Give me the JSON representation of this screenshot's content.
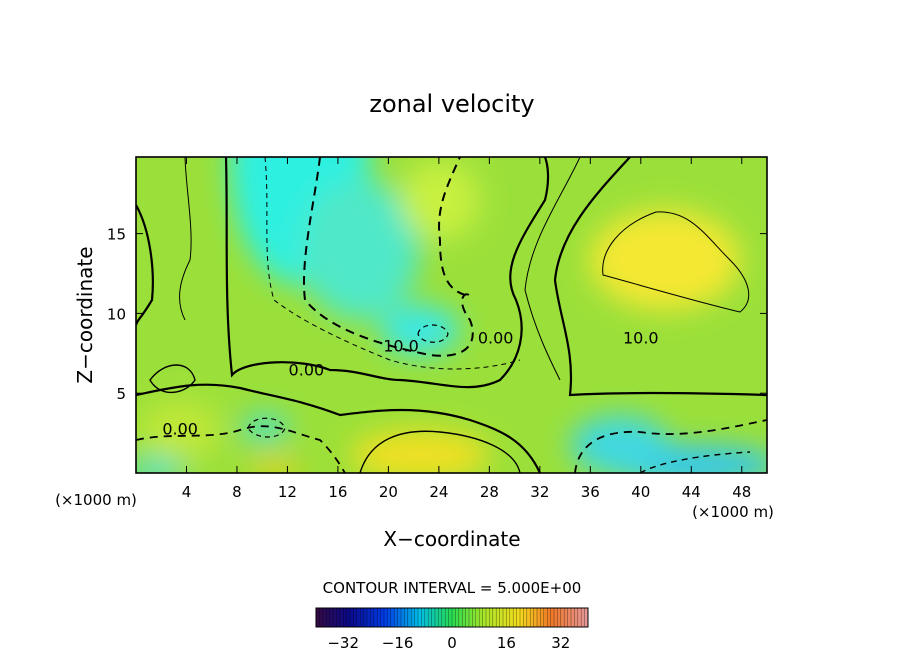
{
  "chart_data": {
    "type": "heatmap",
    "title": "zonal velocity",
    "xlabel": "X−coordinate",
    "ylabel": "Z−coordinate",
    "x_unit_left": "(×1000 m)",
    "x_unit_right": "(×1000 m)",
    "xlim": [
      0,
      50
    ],
    "ylim": [
      0,
      19.8
    ],
    "x_ticks": [
      4,
      8,
      12,
      16,
      20,
      24,
      28,
      32,
      36,
      40,
      44,
      48
    ],
    "y_ticks": [
      5,
      10,
      15
    ],
    "contour_interval_text": "CONTOUR INTERVAL = 5.000E+00",
    "contour_interval": 5.0,
    "contour_labels": [
      {
        "text": "10.0",
        "x": 21,
        "y": 8.0
      },
      {
        "text": "0.00",
        "x": 28.5,
        "y": 8.5
      },
      {
        "text": "10.0",
        "x": 40,
        "y": 8.5
      },
      {
        "text": "0.00",
        "x": 13.5,
        "y": 6.5
      },
      {
        "text": "0.00",
        "x": 3.5,
        "y": 2.8
      }
    ],
    "colorbar": {
      "min": -40,
      "max": 40,
      "ticks": [
        -32,
        -16,
        0,
        16,
        32
      ],
      "tick_labels": [
        "−32",
        "−16",
        "0",
        "16",
        "32"
      ]
    },
    "colors": {
      "frame": "#000000",
      "background": "#ffffff"
    }
  }
}
